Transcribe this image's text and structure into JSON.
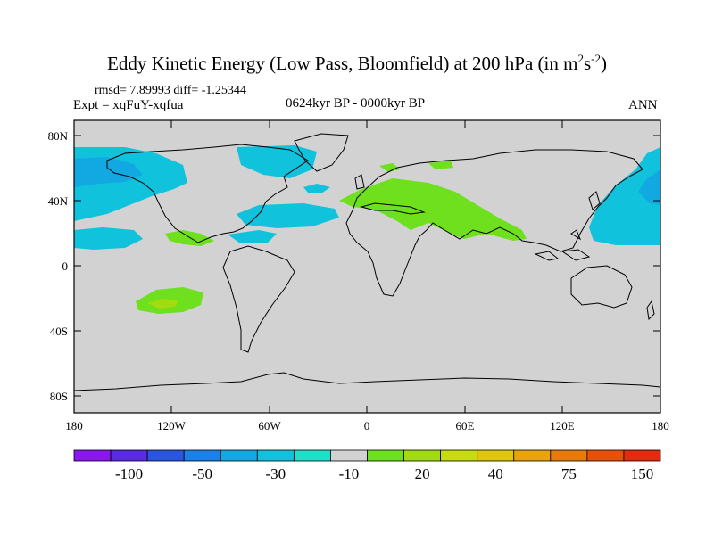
{
  "figure": {
    "title_main": "Eddy Kinetic Energy (Low Pass, Bloomfield) at 200 hPa (in m",
    "title_sup1": "2",
    "title_mid": "s",
    "title_sup2": "-2",
    "title_end": ")",
    "stats": "rmsd= 7.89993  diff= -1.25344",
    "experiment": "Expt = xqFuY-xqfua",
    "period": "0624kyr BP - 0000kyr BP",
    "season": "ANN"
  },
  "axes": {
    "lat_ticks": [
      "80N",
      "40N",
      "0",
      "40S",
      "80S"
    ],
    "lon_ticks": [
      "180",
      "120W",
      "60W",
      "0",
      "60E",
      "120E",
      "180"
    ]
  },
  "colorbar": {
    "colors": [
      "#8a16f0",
      "#5a2ae6",
      "#2a55e0",
      "#1b80e8",
      "#12a8e2",
      "#10c2dc",
      "#1ee0c8",
      "#d2d2d2",
      "#6ee01e",
      "#a2dc10",
      "#c8dc0a",
      "#e0c808",
      "#e8a408",
      "#e87a08",
      "#e8500a",
      "#e62a10"
    ],
    "labels": [
      "-100",
      "-50",
      "-30",
      "-10",
      "20",
      "40",
      "75",
      "150"
    ]
  },
  "chart_data": {
    "type": "contour-map",
    "variable": "Eddy Kinetic Energy difference",
    "units": "m2 s-2",
    "level": "200 hPa",
    "lon_range": [
      -180,
      180
    ],
    "lat_range": [
      -90,
      90
    ],
    "negative_anomaly_regions": [
      {
        "lon": -160,
        "lat": 60
      },
      {
        "lon": -170,
        "lat": 20
      },
      {
        "lon": -95,
        "lat": 62
      },
      {
        "lon": -55,
        "lat": 35
      },
      {
        "lon": -85,
        "lat": 18
      },
      {
        "lon": -30,
        "lat": 50
      },
      {
        "lon": 165,
        "lat": 50
      }
    ],
    "positive_anomaly_regions": [
      {
        "lon": 45,
        "lat": 35
      },
      {
        "lon": 85,
        "lat": 22
      },
      {
        "lon": 25,
        "lat": 67
      },
      {
        "lon": -110,
        "lat": -25
      },
      {
        "lon": -110,
        "lat": 18
      }
    ]
  }
}
